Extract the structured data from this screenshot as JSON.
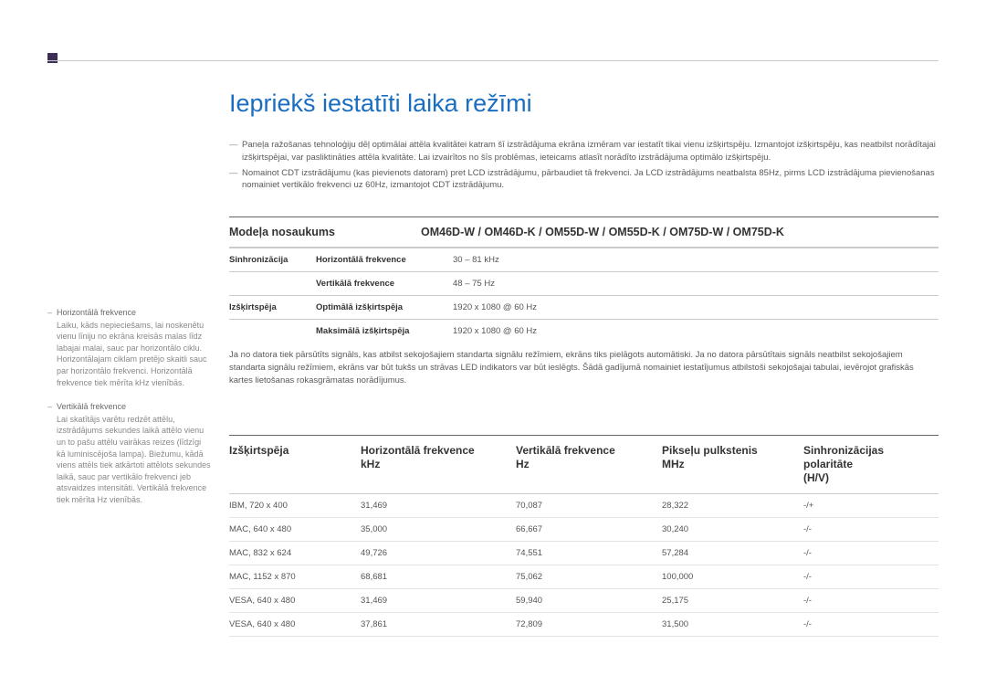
{
  "title": "Iepriekš iestatīti laika režīmi",
  "bullets": [
    "Paneļa ražošanas tehnoloģiju dēļ optimālai attēla kvalitātei katram šī izstrādājuma ekrāna izmēram var iestatīt tikai vienu izšķirtspēju. Izmantojot izšķirtspēju, kas neatbilst norādītajai izšķirtspējai, var pasliktināties attēla kvalitāte. Lai izvairītos no šīs problēmas, ieteicams atlasīt norādīto izstrādājuma optimālo izšķirtspēju.",
    "Nomainot CDT izstrādājumu (kas pievienots datoram) pret LCD izstrādājumu, pārbaudiet tā frekvenci. Ja LCD izstrādājums neatbalsta 85Hz, pirms LCD izstrādājuma pievienošanas nomainiet vertikālo frekvenci uz 60Hz, izmantojot CDT izstrādājumu."
  ],
  "spec": {
    "header_label": "Modeļa nosaukums",
    "header_value": "OM46D-W / OM46D-K / OM55D-W / OM55D-K / OM75D-W / OM75D-K",
    "rows": [
      {
        "g": "Sinhronizācija",
        "k": "Horizontālā frekvence",
        "v": "30 – 81 kHz"
      },
      {
        "g": "",
        "k": "Vertikālā frekvence",
        "v": "48 – 75 Hz"
      },
      {
        "g": "Izšķirtspēja",
        "k": "Optimālā izšķirtspēja",
        "v": "1920 x 1080 @ 60 Hz"
      },
      {
        "g": "",
        "k": "Maksimālā izšķirtspēja",
        "v": "1920 x 1080 @ 60 Hz"
      }
    ],
    "note": "Ja no datora tiek pārsūtīts signāls, kas atbilst sekojošajiem standarta signālu režīmiem, ekrāns tiks pielāgots automātiski. Ja no datora pārsūtītais signāls neatbilst sekojošajiem standarta signālu režīmiem, ekrāns var būt tukšs un strāvas LED indikators var būt ieslēgts. Šādā gadījumā nomainiet iestatījumus atbilstoši sekojošajai tabulai, ievērojot grafiskās kartes lietošanas rokasgrāmatas norādījumus."
  },
  "sidebar": [
    {
      "title": "Horizontālā frekvence",
      "body": "Laiku, kāds nepieciešams, lai noskenētu vienu līniju no ekrāna kreisās malas līdz labajai malai, sauc par horizontālo ciklu. Horizontālajam ciklam pretējo skaitli sauc par horizontālo frekvenci. Horizontālā frekvence tiek mērīta kHz vienībās."
    },
    {
      "title": "Vertikālā frekvence",
      "body": "Lai skatītājs varētu redzēt attēlu, izstrādājums sekundes laikā attēlo vienu un to pašu attēlu vairākas reizes (līdzīgi kā luminiscējoša lampa). Biežumu, kādā viens attēls tiek atkārtoti attēlots sekundes laikā, sauc par vertikālo frekvenci jeb atsvaidzes intensitāti. Vertikālā frekvence tiek mērīta Hz vienībās."
    }
  ],
  "table": {
    "headers": [
      "Izšķirtspēja",
      "Horizontālā frekvence\nkHz",
      "Vertikālā frekvence\nHz",
      "Pikseļu pulkstenis\nMHz",
      "Sinhronizācijas polaritāte\n(H/V)"
    ],
    "rows": [
      [
        "IBM, 720 x 400",
        "31,469",
        "70,087",
        "28,322",
        "-/+"
      ],
      [
        "MAC, 640 x 480",
        "35,000",
        "66,667",
        "30,240",
        "-/-"
      ],
      [
        "MAC, 832 x 624",
        "49,726",
        "74,551",
        "57,284",
        "-/-"
      ],
      [
        "MAC, 1152 x 870",
        "68,681",
        "75,062",
        "100,000",
        "-/-"
      ],
      [
        "VESA, 640 x 480",
        "31,469",
        "59,940",
        "25,175",
        "-/-"
      ],
      [
        "VESA, 640 x 480",
        "37,861",
        "72,809",
        "31,500",
        "-/-"
      ]
    ]
  }
}
